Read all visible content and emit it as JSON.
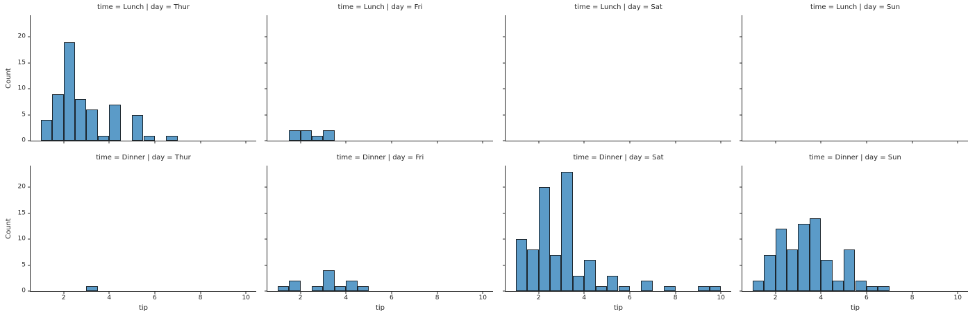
{
  "figure": {
    "background": "#ffffff"
  },
  "chart_data": {
    "type": "bar",
    "subtype": "faceted-histogram",
    "facet_grid": {
      "row_variable": "time",
      "row_values": [
        "Lunch",
        "Dinner"
      ],
      "col_variable": "day",
      "col_values": [
        "Thur",
        "Fri",
        "Sat",
        "Sun"
      ]
    },
    "xlabel": "tip",
    "ylabel": "Count",
    "x_ticks": [
      2,
      4,
      6,
      8,
      10
    ],
    "y_ticks": [
      0,
      5,
      10,
      15,
      20
    ],
    "xlim": [
      0.55,
      10.45
    ],
    "ylim": [
      0,
      24.15
    ],
    "bin_width": 0.5,
    "grid": false,
    "legend": false,
    "colors": {
      "bar_fill": "#5b9bc8",
      "bar_edge": "#1c262e",
      "axis": "#262626",
      "text": "#262626"
    },
    "facets": [
      {
        "title": "time = Lunch | day = Thur",
        "time": "Lunch",
        "day": "Thur",
        "bars": [
          {
            "x": 1.0,
            "count": 4
          },
          {
            "x": 1.5,
            "count": 9
          },
          {
            "x": 2.0,
            "count": 19
          },
          {
            "x": 2.5,
            "count": 8
          },
          {
            "x": 3.0,
            "count": 6
          },
          {
            "x": 3.5,
            "count": 1
          },
          {
            "x": 4.0,
            "count": 7
          },
          {
            "x": 5.0,
            "count": 5
          },
          {
            "x": 5.5,
            "count": 1
          },
          {
            "x": 6.5,
            "count": 1
          }
        ]
      },
      {
        "title": "time = Lunch | day = Fri",
        "time": "Lunch",
        "day": "Fri",
        "bars": [
          {
            "x": 1.5,
            "count": 2
          },
          {
            "x": 2.0,
            "count": 2
          },
          {
            "x": 2.5,
            "count": 1
          },
          {
            "x": 3.0,
            "count": 2
          }
        ]
      },
      {
        "title": "time = Lunch | day = Sat",
        "time": "Lunch",
        "day": "Sat",
        "bars": []
      },
      {
        "title": "time = Lunch | day = Sun",
        "time": "Lunch",
        "day": "Sun",
        "bars": []
      },
      {
        "title": "time = Dinner | day = Thur",
        "time": "Dinner",
        "day": "Thur",
        "bars": [
          {
            "x": 3.0,
            "count": 1
          }
        ]
      },
      {
        "title": "time = Dinner | day = Fri",
        "time": "Dinner",
        "day": "Fri",
        "bars": [
          {
            "x": 1.0,
            "count": 1
          },
          {
            "x": 1.5,
            "count": 2
          },
          {
            "x": 2.5,
            "count": 1
          },
          {
            "x": 3.0,
            "count": 4
          },
          {
            "x": 3.5,
            "count": 1
          },
          {
            "x": 4.0,
            "count": 2
          },
          {
            "x": 4.5,
            "count": 1
          }
        ]
      },
      {
        "title": "time = Dinner | day = Sat",
        "time": "Dinner",
        "day": "Sat",
        "bars": [
          {
            "x": 1.0,
            "count": 10
          },
          {
            "x": 1.5,
            "count": 8
          },
          {
            "x": 2.0,
            "count": 20
          },
          {
            "x": 2.5,
            "count": 7
          },
          {
            "x": 3.0,
            "count": 23
          },
          {
            "x": 3.5,
            "count": 3
          },
          {
            "x": 4.0,
            "count": 6
          },
          {
            "x": 4.5,
            "count": 1
          },
          {
            "x": 5.0,
            "count": 3
          },
          {
            "x": 5.5,
            "count": 1
          },
          {
            "x": 6.5,
            "count": 2
          },
          {
            "x": 7.5,
            "count": 1
          },
          {
            "x": 9.0,
            "count": 1
          },
          {
            "x": 9.5,
            "count": 1
          }
        ]
      },
      {
        "title": "time = Dinner | day = Sun",
        "time": "Dinner",
        "day": "Sun",
        "bars": [
          {
            "x": 1.0,
            "count": 2
          },
          {
            "x": 1.5,
            "count": 7
          },
          {
            "x": 2.0,
            "count": 12
          },
          {
            "x": 2.5,
            "count": 8
          },
          {
            "x": 3.0,
            "count": 13
          },
          {
            "x": 3.5,
            "count": 14
          },
          {
            "x": 4.0,
            "count": 6
          },
          {
            "x": 4.5,
            "count": 2
          },
          {
            "x": 5.0,
            "count": 8
          },
          {
            "x": 5.5,
            "count": 2
          },
          {
            "x": 6.0,
            "count": 1
          },
          {
            "x": 6.5,
            "count": 1
          }
        ]
      }
    ]
  }
}
